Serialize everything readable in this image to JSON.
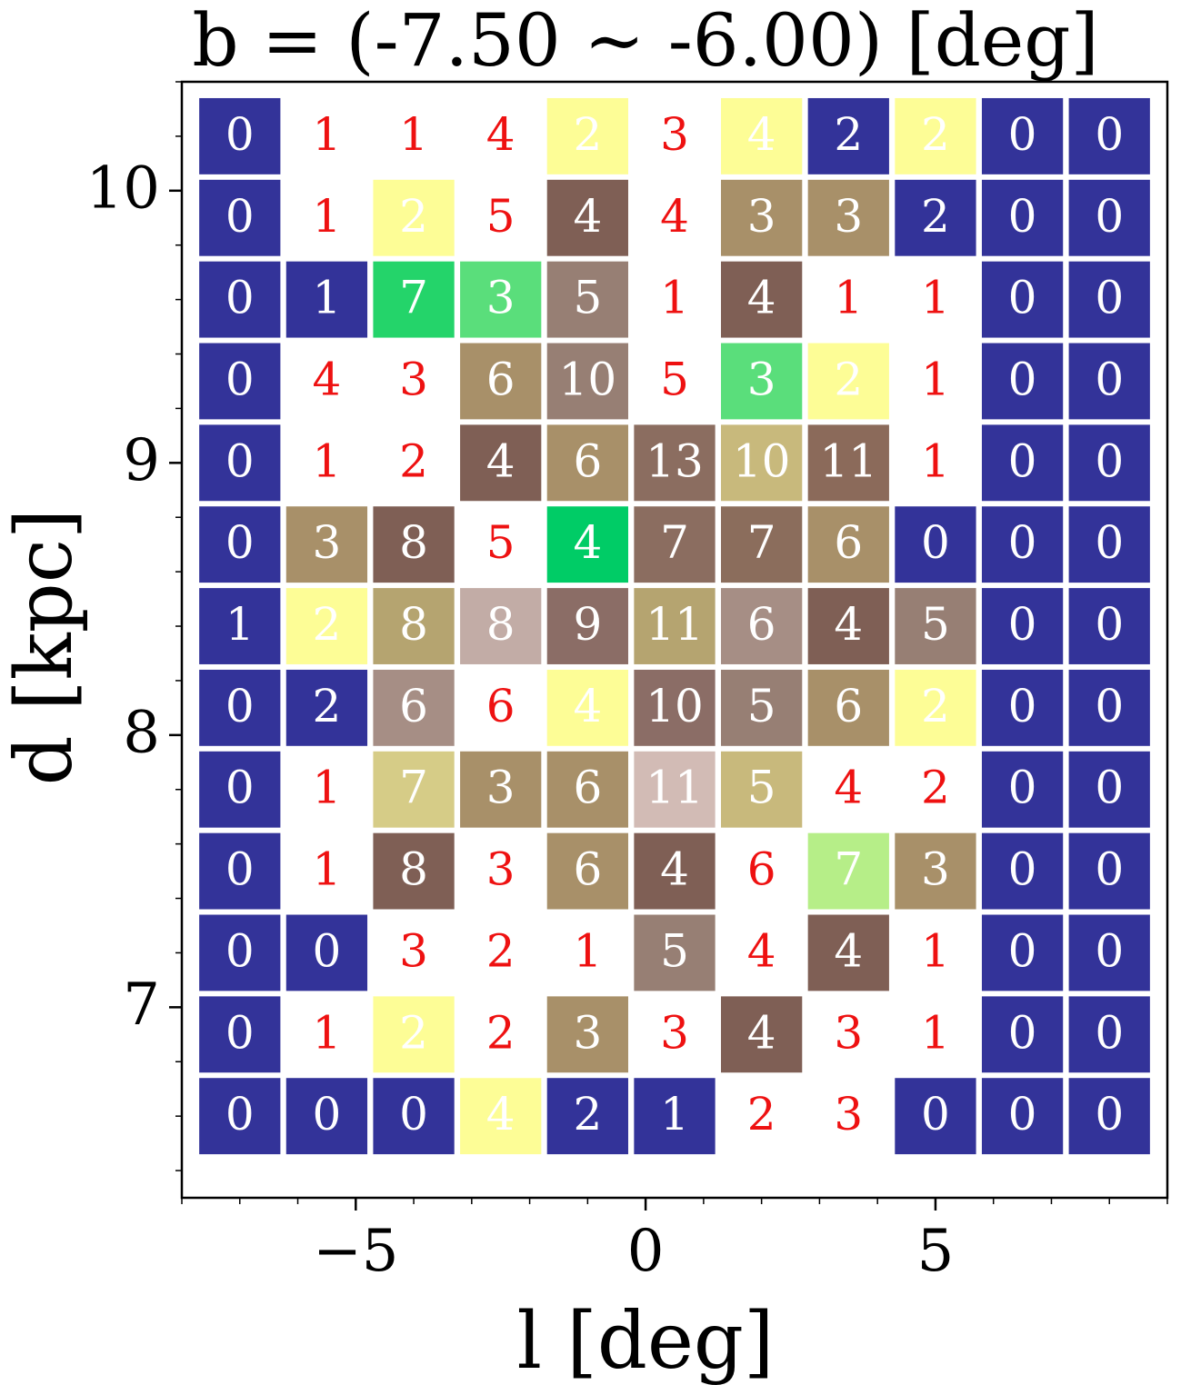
{
  "chart_data": {
    "type": "heatmap",
    "title": "b = (-7.50 ∼ -6.00) [deg]",
    "xlabel": "l [deg]",
    "ylabel": "d [kpc]",
    "xlim": [
      -8,
      9
    ],
    "ylim": [
      6.3,
      10.4
    ],
    "x_ticks": [
      -5,
      0,
      5
    ],
    "x_tick_labels": [
      "−5",
      "0",
      "5"
    ],
    "y_ticks": [
      7,
      8,
      9,
      10
    ],
    "y_tick_labels": [
      "7",
      "8",
      "9",
      "10"
    ],
    "cell_l_centers": [
      -7.0,
      -5.5,
      -4.0,
      -2.5,
      -1.0,
      0.5,
      2.0,
      3.5,
      5.0,
      6.5,
      8.0
    ],
    "cell_d_centers": [
      10.2,
      9.9,
      9.6,
      9.3,
      9.0,
      8.7,
      8.4,
      8.1,
      7.8,
      7.5,
      7.2,
      6.9,
      6.6
    ],
    "cell_width": 1.4,
    "cell_height": 0.28,
    "grid": false,
    "counts": [
      [
        0,
        1,
        1,
        4,
        2,
        3,
        4,
        2,
        2,
        0,
        0
      ],
      [
        0,
        1,
        2,
        5,
        4,
        4,
        3,
        3,
        2,
        0,
        0
      ],
      [
        0,
        1,
        7,
        3,
        5,
        1,
        4,
        1,
        1,
        0,
        0
      ],
      [
        0,
        4,
        3,
        6,
        10,
        5,
        3,
        2,
        1,
        0,
        0
      ],
      [
        0,
        1,
        2,
        4,
        6,
        13,
        10,
        11,
        1,
        0,
        0
      ],
      [
        0,
        3,
        8,
        5,
        4,
        7,
        7,
        6,
        0,
        0,
        0
      ],
      [
        1,
        2,
        8,
        8,
        9,
        11,
        6,
        4,
        5,
        0,
        0
      ],
      [
        0,
        2,
        6,
        6,
        4,
        10,
        5,
        6,
        2,
        0,
        0
      ],
      [
        0,
        1,
        7,
        3,
        6,
        11,
        5,
        4,
        2,
        0,
        0
      ],
      [
        0,
        1,
        8,
        3,
        6,
        4,
        6,
        7,
        3,
        0,
        0
      ],
      [
        0,
        0,
        3,
        2,
        1,
        5,
        4,
        4,
        1,
        0,
        0
      ],
      [
        0,
        1,
        2,
        2,
        3,
        3,
        4,
        3,
        1,
        0,
        0
      ],
      [
        0,
        0,
        0,
        4,
        2,
        1,
        2,
        3,
        0,
        0,
        0
      ]
    ],
    "cell_colors": [
      [
        "#333399",
        "",
        "",
        "",
        "#fdfd96",
        "",
        "#fdfd96",
        "#333399",
        "#fdfd96",
        "#333399",
        "#333399"
      ],
      [
        "#333399",
        "",
        "#fdfd96",
        "",
        "#7f5f55",
        "",
        "#a89069",
        "#a89069",
        "#333399",
        "#333399",
        "#333399"
      ],
      [
        "#333399",
        "#333399",
        "#24d46a",
        "#5ade7b",
        "#977f74",
        "",
        "#7f5f55",
        "",
        "",
        "#333399",
        "#333399"
      ],
      [
        "#333399",
        "",
        "",
        "#a89069",
        "#977f74",
        "",
        "#5ade7b",
        "#fdfd96",
        "",
        "#333399",
        "#333399"
      ],
      [
        "#333399",
        "",
        "",
        "#7f5f55",
        "#a89069",
        "#8b6d60",
        "#c8b97c",
        "#8b6a5a",
        "",
        "#333399",
        "#333399"
      ],
      [
        "#333399",
        "#a89069",
        "#7f5f55",
        "",
        "#00cc66",
        "#8b6d60",
        "#8b6d5c",
        "#a89069",
        "#333399",
        "#333399",
        "#333399"
      ],
      [
        "#333399",
        "#fdfd96",
        "#b5a470",
        "#c2aca6",
        "#8b6d66",
        "#b5a470",
        "#a68e85",
        "#7f5f55",
        "#977f74",
        "#333399",
        "#333399"
      ],
      [
        "#333399",
        "#333399",
        "#a68e85",
        "",
        "#fdfd96",
        "#8b6d66",
        "#977f74",
        "#a89069",
        "#fdfd96",
        "#333399",
        "#333399"
      ],
      [
        "#333399",
        "",
        "#d6cc87",
        "#a89069",
        "#a89069",
        "#d2bbb5",
        "#c8b97c",
        "",
        "",
        "#333399",
        "#333399"
      ],
      [
        "#333399",
        "",
        "#7f5f55",
        "",
        "#a89069",
        "#7f5f55",
        "",
        "#b6ee88",
        "#a89069",
        "#333399",
        "#333399"
      ],
      [
        "#333399",
        "#333399",
        "",
        "",
        "",
        "#977f74",
        "",
        "#7f5f55",
        "",
        "#333399",
        "#333399"
      ],
      [
        "#333399",
        "",
        "#fdfd96",
        "",
        "#a89069",
        "",
        "#7f5f55",
        "",
        "",
        "#333399",
        "#333399"
      ],
      [
        "#333399",
        "#333399",
        "#333399",
        "#fdfd96",
        "#333399",
        "#333399",
        "",
        "",
        "#333399",
        "#333399",
        "#333399"
      ]
    ],
    "colors": {
      "on_colored_cell_text": "#ffffff",
      "on_white_cell_text": "#ee1111",
      "axis": "#000000"
    }
  }
}
